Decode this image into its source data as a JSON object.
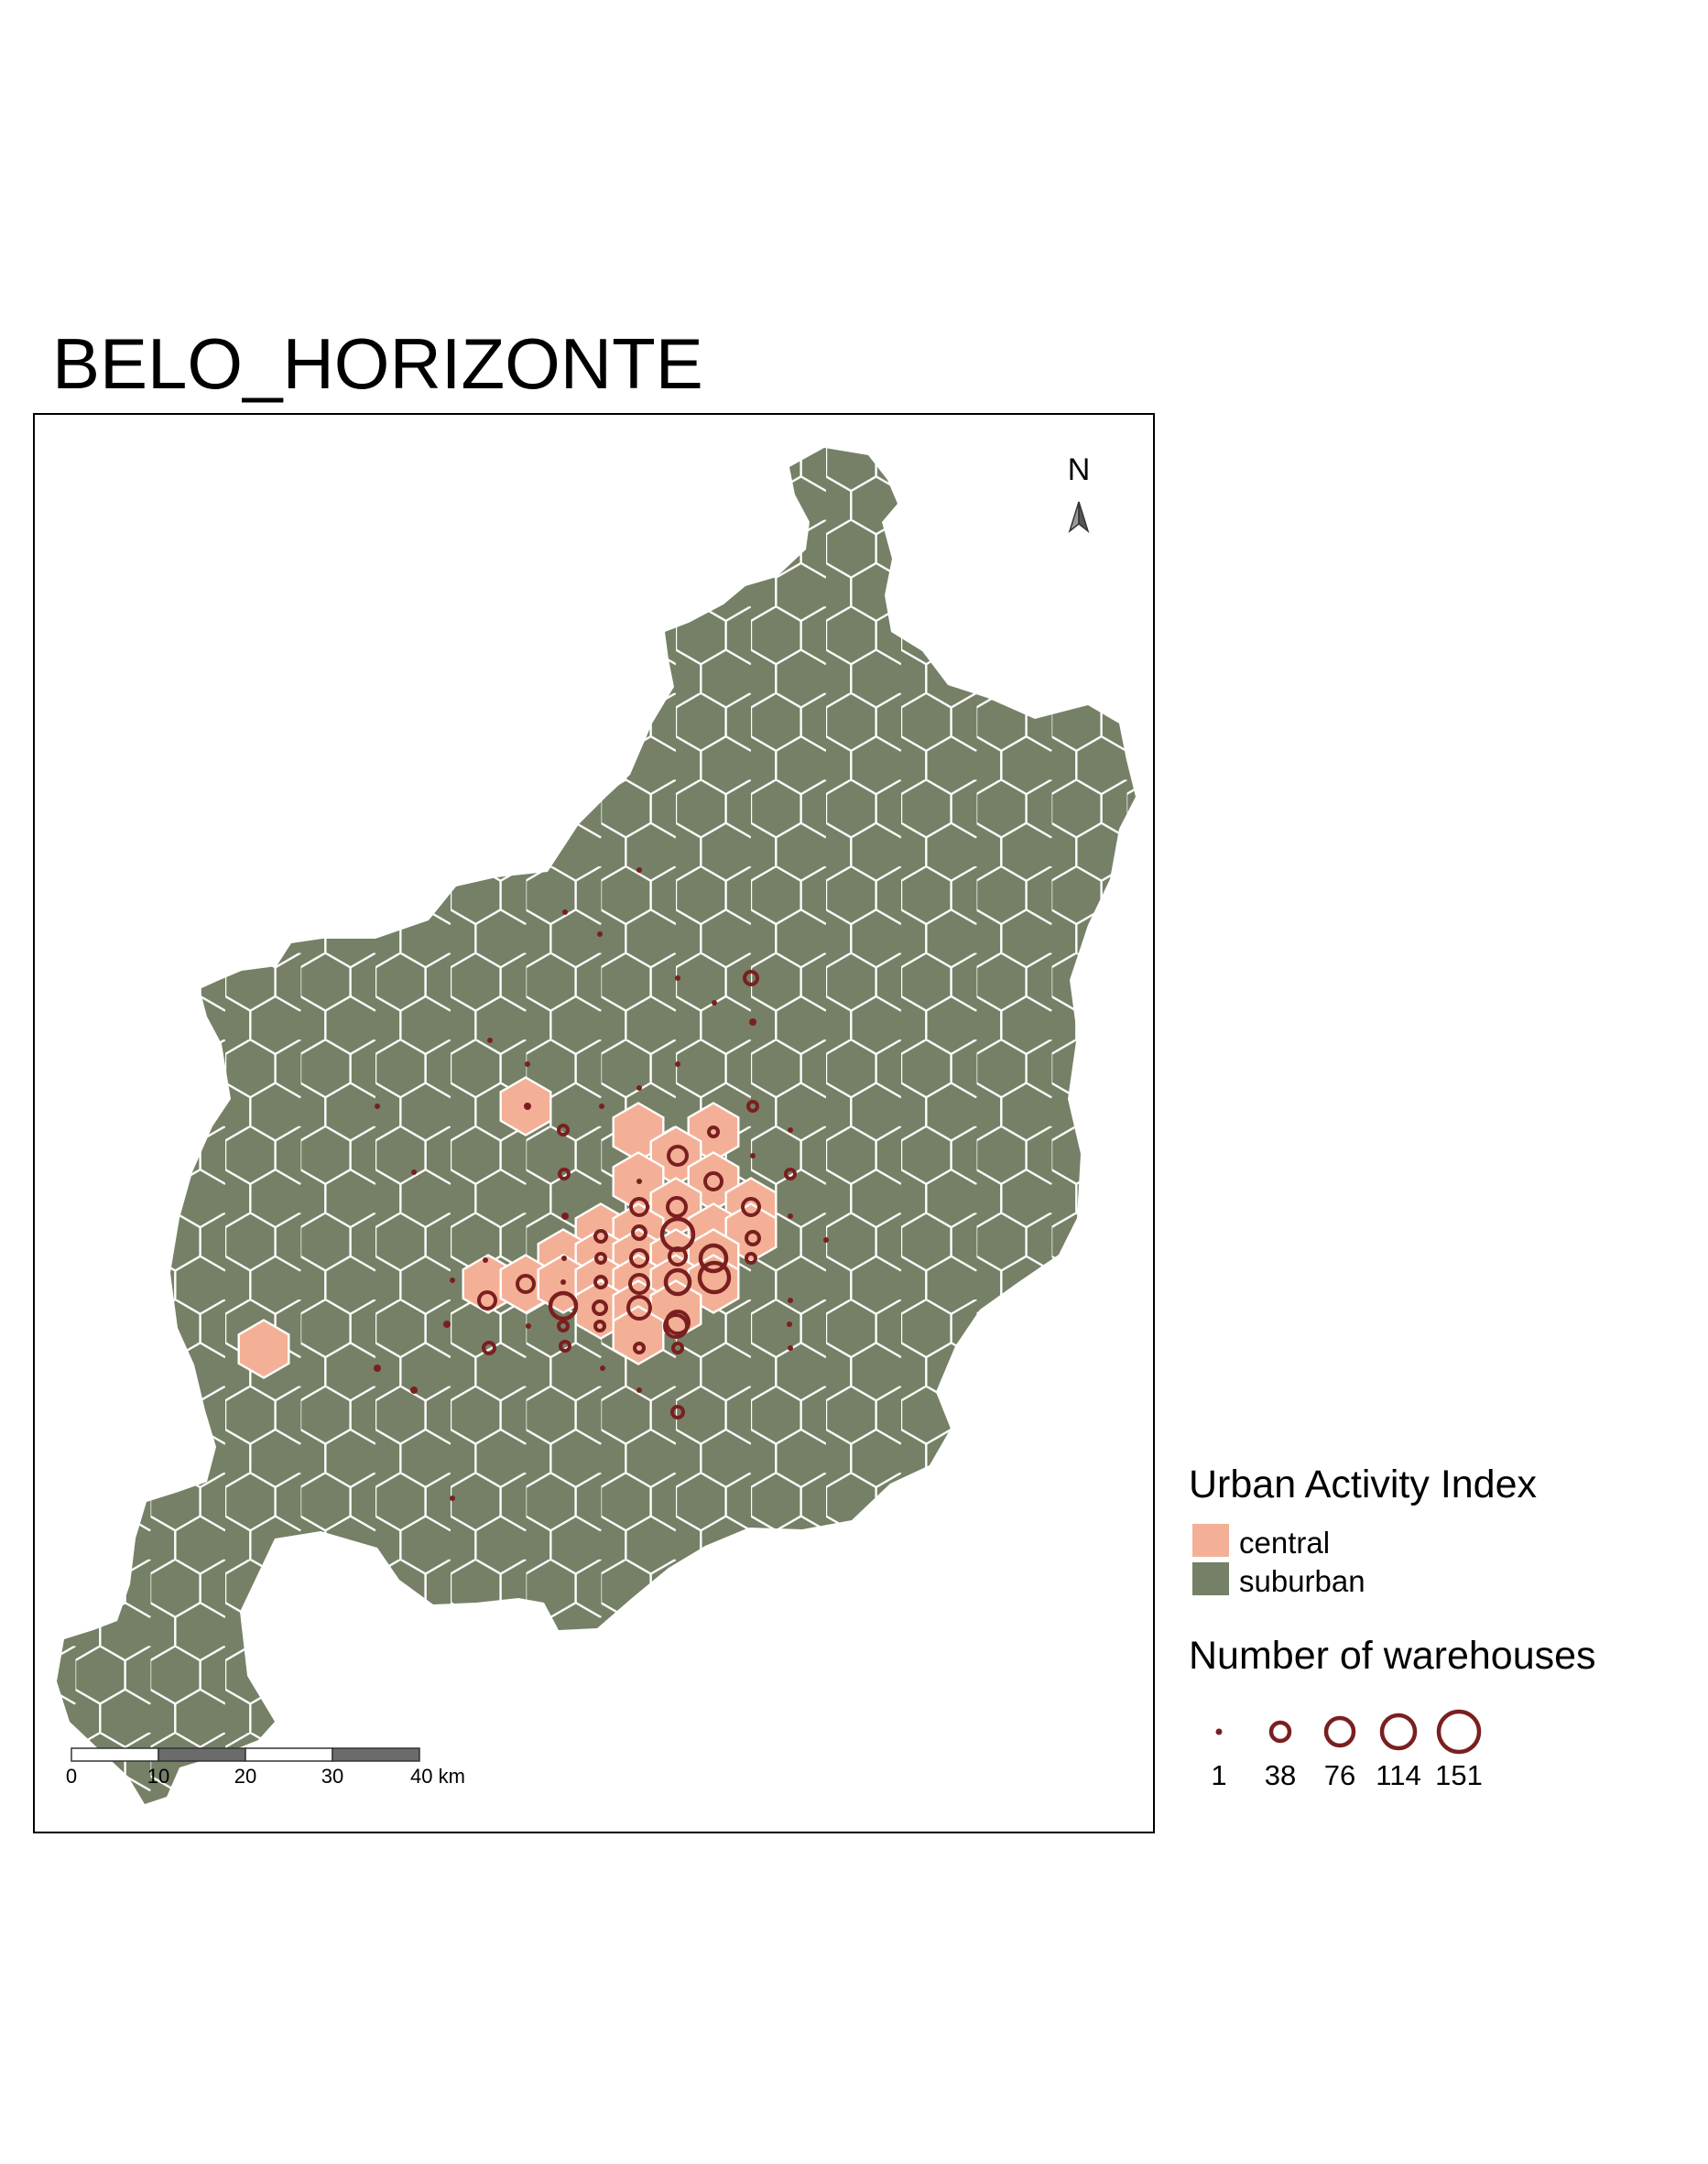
{
  "map": {
    "title": "BELO_HORIZONTE",
    "north_arrow_label": "N"
  },
  "legend": {
    "fill_title": "Urban Activity Index",
    "fill_items": [
      {
        "label": "central",
        "color": "#F4B096"
      },
      {
        "label": "suburban",
        "color": "#758066"
      }
    ],
    "size_title": "Number of warehouses",
    "size_items": [
      "1",
      "38",
      "76",
      "114",
      "151"
    ],
    "symbol_color": "#7A1F1F"
  },
  "scale_bar": {
    "labels": [
      "0",
      "10",
      "20",
      "30",
      "40 km"
    ]
  }
}
